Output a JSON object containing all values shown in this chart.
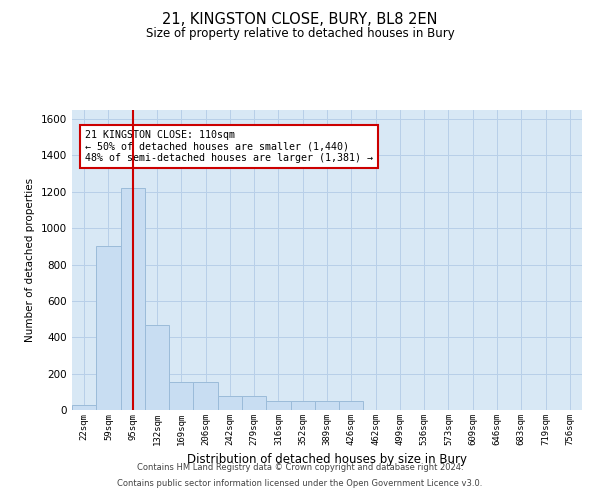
{
  "title": "21, KINGSTON CLOSE, BURY, BL8 2EN",
  "subtitle": "Size of property relative to detached houses in Bury",
  "xlabel": "Distribution of detached houses by size in Bury",
  "ylabel": "Number of detached properties",
  "bin_labels": [
    "22sqm",
    "59sqm",
    "95sqm",
    "132sqm",
    "169sqm",
    "206sqm",
    "242sqm",
    "279sqm",
    "316sqm",
    "352sqm",
    "389sqm",
    "426sqm",
    "462sqm",
    "499sqm",
    "536sqm",
    "573sqm",
    "609sqm",
    "646sqm",
    "683sqm",
    "719sqm",
    "756sqm"
  ],
  "bar_heights": [
    30,
    900,
    1220,
    470,
    155,
    155,
    75,
    75,
    50,
    50,
    50,
    50,
    0,
    0,
    0,
    0,
    0,
    0,
    0,
    0,
    0
  ],
  "bar_color": "#c8ddf2",
  "bar_edge_color": "#9bbbd9",
  "grid_color": "#b8cfe8",
  "bg_color": "#d8e8f5",
  "vline_x": 2,
  "vline_color": "#cc0000",
  "annotation_text": "21 KINGSTON CLOSE: 110sqm\n← 50% of detached houses are smaller (1,440)\n48% of semi-detached houses are larger (1,381) →",
  "annotation_box_facecolor": "white",
  "annotation_box_edge": "#cc0000",
  "ylim": [
    0,
    1650
  ],
  "yticks": [
    0,
    200,
    400,
    600,
    800,
    1000,
    1200,
    1400,
    1600
  ],
  "footer_line1": "Contains HM Land Registry data © Crown copyright and database right 2024.",
  "footer_line2": "Contains public sector information licensed under the Open Government Licence v3.0."
}
